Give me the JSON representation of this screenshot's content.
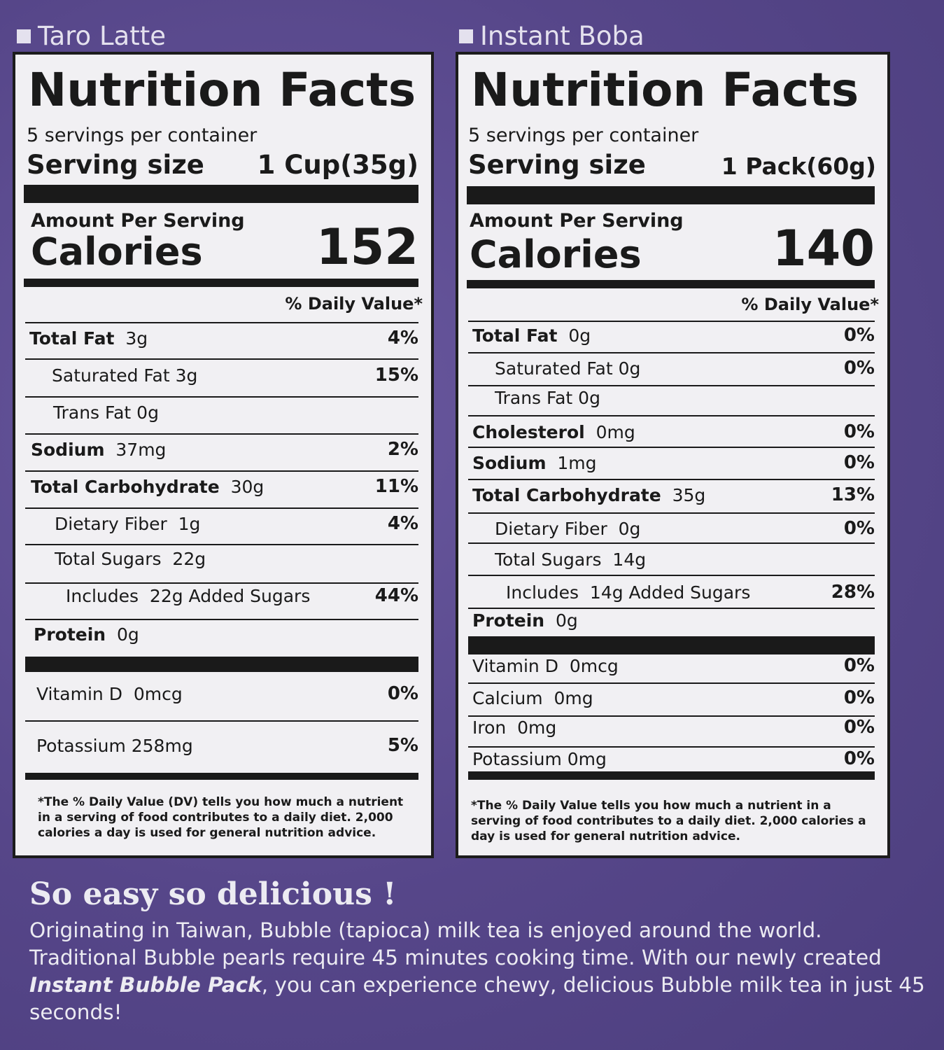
{
  "taro": {
    "label": "Taro Latte",
    "title": "Nutrition Facts",
    "servings": "5 servings per container",
    "serving_size_label": "Serving size",
    "serving_size_value": "1 Cup(35g)",
    "amount_per_serving": "Amount Per Serving",
    "calories_label": "Calories",
    "calories_value": "152",
    "daily_value_header": "% Daily Value*",
    "rows": [
      {
        "bold": "Total Fat",
        "rest": "3g",
        "dv": "4%"
      },
      {
        "bold": "",
        "rest": "Saturated Fat 3g",
        "dv": "15%"
      },
      {
        "bold": "",
        "rest": "Trans Fat 0g",
        "dv": ""
      },
      {
        "bold": "Sodium",
        "rest": "37mg",
        "dv": "2%"
      },
      {
        "bold": "Total Carbohydrate",
        "rest": "30g",
        "dv": "11%"
      },
      {
        "bold": "",
        "rest": "Dietary Fiber  1g",
        "dv": "4%"
      },
      {
        "bold": "",
        "rest": "Total Sugars  22g",
        "dv": ""
      },
      {
        "bold": "",
        "rest": "Includes  22g Added Sugars",
        "dv": "44%"
      },
      {
        "bold": "Protein",
        "rest": "0g",
        "dv": ""
      },
      {
        "bold": "",
        "rest": "Vitamin D  0mcg",
        "dv": "0%"
      },
      {
        "bold": "",
        "rest": "Potassium 258mg",
        "dv": "5%"
      }
    ],
    "footnote": "*The % Daily Value (DV) tells you how much a nutrient in a serving of food contributes to a daily diet. 2,000 calories a day is used for general nutrition advice."
  },
  "boba": {
    "label": "Instant Boba",
    "title": "Nutrition Facts",
    "servings": "5 servings per container",
    "serving_size_label": "Serving size",
    "serving_size_value": "1 Pack(60g)",
    "amount_per_serving": "Amount Per Serving",
    "calories_label": "Calories",
    "calories_value": "140",
    "daily_value_header": "% Daily Value*",
    "rows": [
      {
        "bold": "Total Fat",
        "rest": "0g",
        "dv": "0%"
      },
      {
        "bold": "",
        "rest": "Saturated Fat 0g",
        "dv": "0%"
      },
      {
        "bold": "",
        "rest": "Trans Fat 0g",
        "dv": ""
      },
      {
        "bold": "Cholesterol",
        "rest": "0mg",
        "dv": "0%"
      },
      {
        "bold": "Sodium",
        "rest": "1mg",
        "dv": "0%"
      },
      {
        "bold": "Total Carbohydrate",
        "rest": "35g",
        "dv": "13%"
      },
      {
        "bold": "",
        "rest": "Dietary Fiber  0g",
        "dv": "0%"
      },
      {
        "bold": "",
        "rest": "Total Sugars  14g",
        "dv": ""
      },
      {
        "bold": "",
        "rest": "Includes  14g Added Sugars",
        "dv": "28%"
      },
      {
        "bold": "Protein",
        "rest": "0g",
        "dv": ""
      },
      {
        "bold": "",
        "rest": "Vitamin D  0mcg",
        "dv": "0%"
      },
      {
        "bold": "",
        "rest": "Calcium  0mg",
        "dv": "0%"
      },
      {
        "bold": "",
        "rest": "Iron  0mg",
        "dv": "0%"
      },
      {
        "bold": "",
        "rest": "Potassium 0mg",
        "dv": "0%"
      }
    ],
    "footnote": "*The % Daily Value tells you how much a nutrient in a serving of food contributes to a daily diet. 2,000 calories a day is used for general nutrition advice."
  },
  "tagline": "So easy so delicious !",
  "description": {
    "part1": "Originating in Taiwan, Bubble (tapioca) milk tea is enjoyed around the world. Traditional Bubble pearls require 45 minutes cooking time. With our newly created ",
    "emphasis": "Instant Bubble Pack",
    "part2": ", you can experience chewy, delicious Bubble milk tea in just 45 seconds!"
  }
}
